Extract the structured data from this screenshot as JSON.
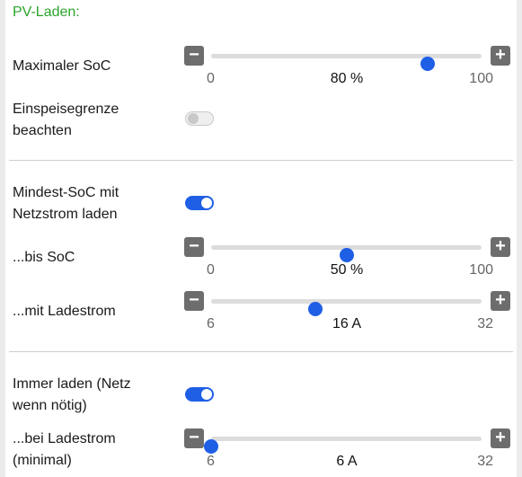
{
  "section_title": "PV-Laden:",
  "max_soc": {
    "label": "Maximaler SoC",
    "min": "0",
    "max": "100",
    "value_text": "80 %",
    "range": [
      0,
      100
    ],
    "value": 80
  },
  "feed_in_limit": {
    "label_line1": "Einspeisegrenze",
    "label_line2": "beachten",
    "enabled": false
  },
  "min_soc_grid": {
    "label_line1": "Mindest-SoC mit",
    "label_line2": "Netzstrom laden",
    "enabled": true
  },
  "until_soc": {
    "label": "...bis SoC",
    "min": "0",
    "max": "100",
    "value_text": "50 %",
    "range": [
      0,
      100
    ],
    "value": 50
  },
  "with_current": {
    "label": "...mit Ladestrom",
    "min": "6",
    "max": "32",
    "value_text": "16 A",
    "range": [
      6,
      32
    ],
    "value": 16
  },
  "always_charge": {
    "label_line1": "Immer laden (Netz",
    "label_line2": "wenn nötig)",
    "enabled": true
  },
  "min_current": {
    "label_line1": "...bei Ladestrom",
    "label_line2": "(minimal)",
    "min": "6",
    "max": "32",
    "value_text": "6 A",
    "range": [
      6,
      32
    ],
    "value": 6
  },
  "buttons": {
    "minus": "−",
    "plus": "+"
  },
  "colors": {
    "accent": "#1f5fe6",
    "title": "#2aa52a",
    "button": "#6d6d6d"
  }
}
